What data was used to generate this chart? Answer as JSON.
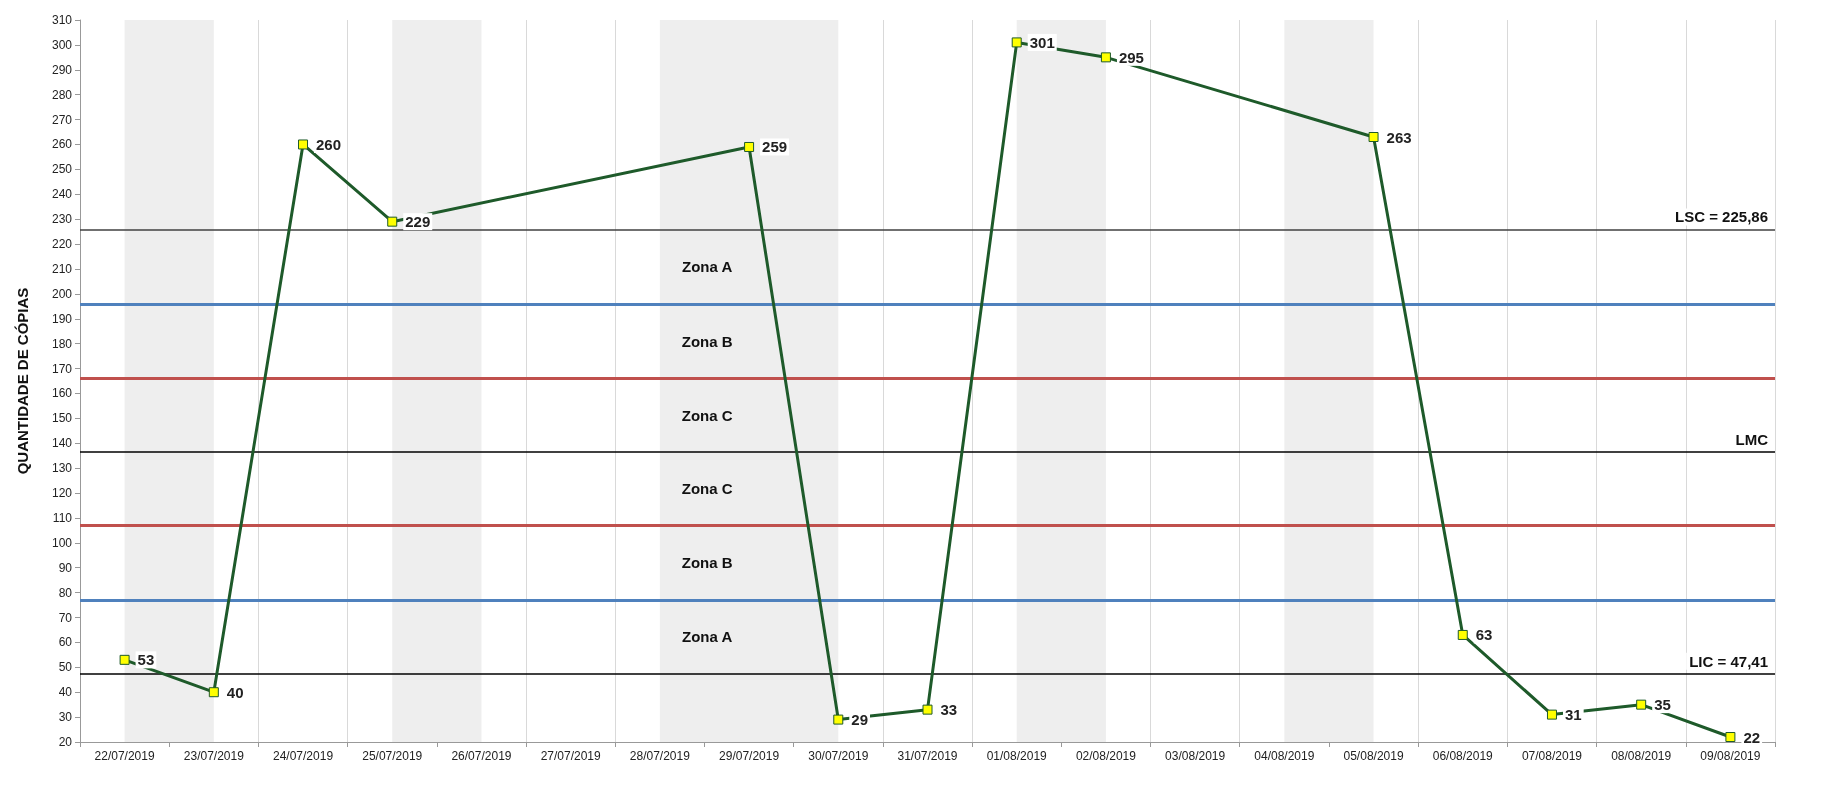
{
  "chart_data": {
    "type": "line",
    "ylabel": "QUANTIDADE DE CÓPIAS",
    "categories": [
      "22/07/2019",
      "23/07/2019",
      "24/07/2019",
      "25/07/2019",
      "26/07/2019",
      "27/07/2019",
      "28/07/2019",
      "29/07/2019",
      "30/07/2019",
      "31/07/2019",
      "01/08/2019",
      "02/08/2019",
      "03/08/2019",
      "04/08/2019",
      "05/08/2019",
      "06/08/2019",
      "07/08/2019",
      "08/08/2019",
      "09/08/2019"
    ],
    "series": [
      {
        "color": "#1e5a2a",
        "values": [
          53,
          40,
          260,
          229,
          null,
          null,
          null,
          259,
          29,
          33,
          301,
          295,
          null,
          null,
          263,
          63,
          31,
          35,
          22
        ],
        "colors": [
          "#ffff00",
          "#ffff00",
          "#ffff00",
          "#ffff00",
          null,
          null,
          null,
          "#ffff00",
          "#ffff00",
          "#ffff00",
          "#ffff00",
          "#ffff00",
          null,
          null,
          "#ffff00",
          "#ffff00",
          "#ffff00",
          "#ffff00",
          "#ffff00"
        ]
      }
    ],
    "ylim": [
      20,
      310
    ],
    "yticks": [
      20,
      30,
      40,
      50,
      60,
      70,
      80,
      90,
      100,
      110,
      120,
      130,
      140,
      150,
      160,
      170,
      180,
      190,
      200,
      210,
      220,
      230,
      240,
      250,
      260,
      270,
      280,
      290,
      300,
      310
    ],
    "data_labels": true,
    "marker": "square",
    "grid": "x",
    "ref_lines": [
      {
        "axis": "y",
        "value": 225.86,
        "label": "LSC = 225,86",
        "color": "#404040"
      },
      {
        "axis": "y",
        "value": 196,
        "color": "#4f81bd"
      },
      {
        "axis": "y",
        "value": 166,
        "color": "#c0504d"
      },
      {
        "axis": "y",
        "value": 136.6,
        "label": "LMC",
        "color": "#000000"
      },
      {
        "axis": "y",
        "value": 107,
        "color": "#c0504d"
      },
      {
        "axis": "y",
        "value": 77,
        "color": "#4f81bd"
      },
      {
        "axis": "y",
        "value": 47.41,
        "label": "LIC = 47,41",
        "color": "#000000"
      }
    ],
    "bands": [
      {
        "axis": "x",
        "from": "22/07/2019",
        "to": "23/07/2019",
        "color": "#eeeeee"
      },
      {
        "axis": "x",
        "from": "25/07/2019",
        "to": "26/07/2019",
        "color": "#eeeeee"
      },
      {
        "axis": "x",
        "from": "28/07/2019",
        "to": "30/07/2019",
        "color": "#eeeeee"
      },
      {
        "axis": "x",
        "from": "01/08/2019",
        "to": "02/08/2019",
        "color": "#eeeeee"
      },
      {
        "axis": "x",
        "from": "04/08/2019",
        "to": "05/08/2019",
        "color": "#eeeeee"
      }
    ],
    "annotations": [
      "Zona A",
      "Zona B",
      "Zona C",
      "Zona C",
      "Zona B",
      "Zona A"
    ]
  }
}
